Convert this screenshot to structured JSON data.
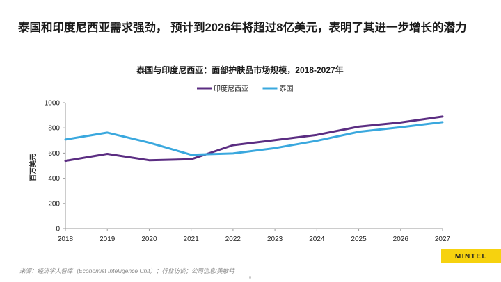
{
  "headline": "泰国和印度尼西亚需求强劲， 预计到2026年将超过8亿美元，表明了其进一步增长的潜力",
  "source": "来源：经济学人智库（Economist Intelligence Unit）；行业访谈；公司信息/英敏特",
  "brand": "MINTEL",
  "chart_data": {
    "type": "line",
    "title": "泰国与印度尼西亚：面部护肤品市场规模，2018-2027年",
    "ylabel": "百万美元",
    "xlabel": "",
    "x": [
      "2018",
      "2019",
      "2020",
      "2021",
      "2022",
      "2023",
      "2024",
      "2025",
      "2026",
      "2027"
    ],
    "ylim": [
      0,
      1000
    ],
    "yticks": [
      0,
      200,
      400,
      600,
      800,
      1000
    ],
    "grid": false,
    "legend": "top-center",
    "series": [
      {
        "name": "印度尼西亚",
        "color": "#5b2d82",
        "values": [
          538,
          594,
          543,
          551,
          663,
          703,
          745,
          810,
          843,
          890
        ]
      },
      {
        "name": "泰国",
        "color": "#3aa8de",
        "values": [
          708,
          763,
          683,
          587,
          597,
          640,
          698,
          769,
          805,
          846
        ]
      }
    ]
  }
}
